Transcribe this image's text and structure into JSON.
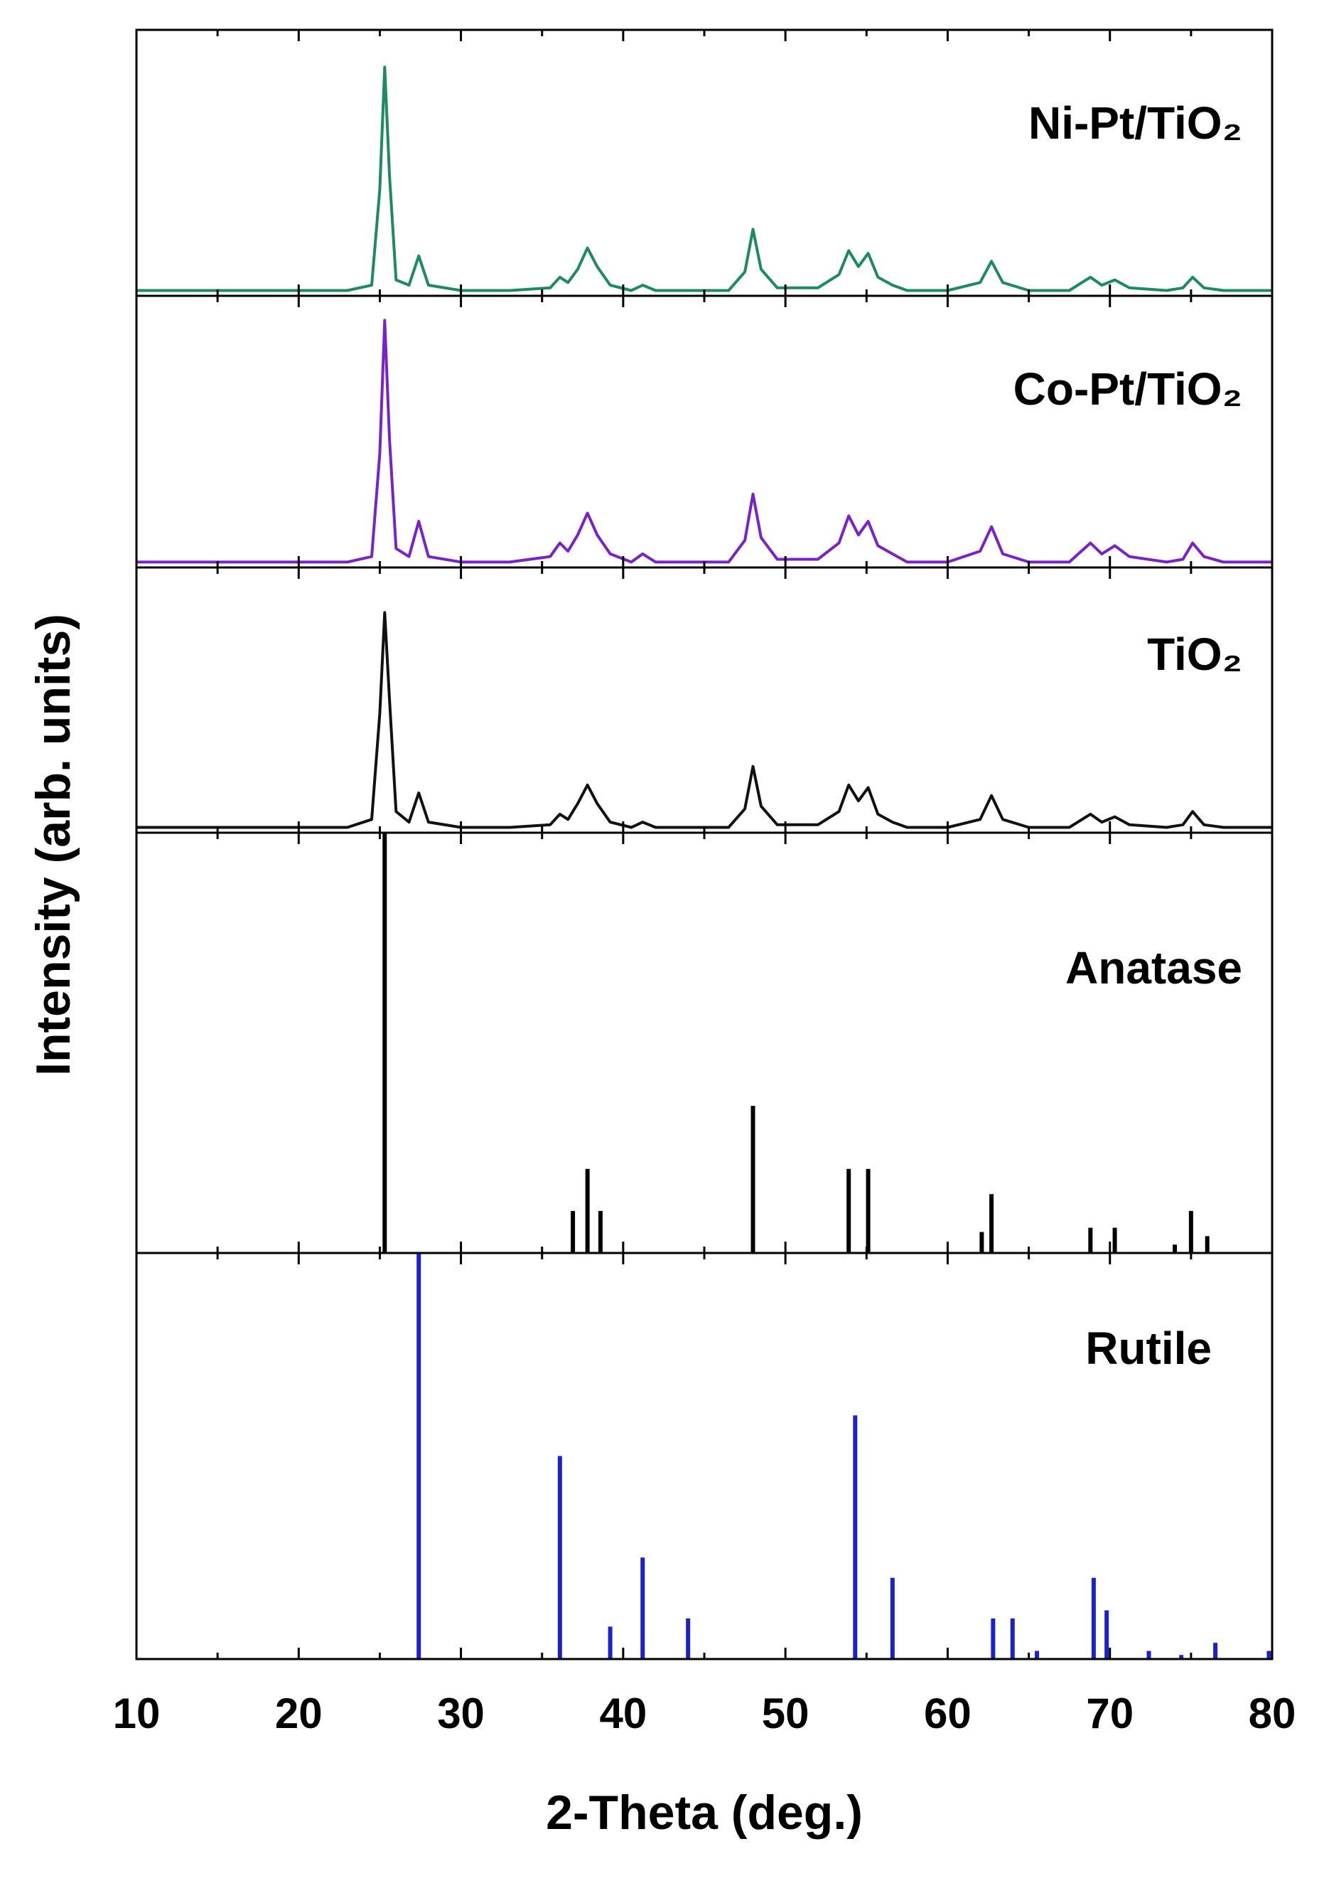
{
  "chart_data": {
    "type": "stacked",
    "xlabel": "2-Theta (deg.)",
    "ylabel": "Intensity (arb. units)",
    "xlim": [
      10,
      80
    ],
    "xticks": [
      10,
      20,
      30,
      40,
      50,
      60,
      70,
      80
    ],
    "xminorticks": [
      15,
      25,
      35,
      45,
      55,
      65,
      75
    ],
    "x": [
      10,
      15,
      20,
      23,
      24.5,
      25.0,
      25.3,
      25.6,
      26.0,
      26.8,
      27.4,
      28.0,
      30,
      33,
      35.5,
      36.1,
      36.6,
      37.2,
      37.8,
      38.4,
      39.2,
      40.5,
      41.2,
      42,
      44,
      46.5,
      47.5,
      48.0,
      48.5,
      49.5,
      52,
      53.3,
      53.9,
      54.5,
      55.1,
      55.7,
      56.6,
      57.5,
      60,
      62.0,
      62.7,
      63.4,
      65,
      67.5,
      68.8,
      69.5,
      70.3,
      71.2,
      73.5,
      74.5,
      75.1,
      75.8,
      77,
      80
    ],
    "panels": [
      {
        "type": "line",
        "label": "Ni-Pt/TiO₂",
        "color": "#1e8a60",
        "ylim": [
          0,
          100
        ],
        "values": [
          2,
          2,
          2,
          2,
          4,
          40,
          86,
          45,
          6,
          4,
          15,
          4,
          2,
          2,
          3,
          7,
          5,
          10,
          18,
          11,
          4,
          2,
          4,
          2,
          2,
          2,
          9,
          25,
          10,
          3,
          3,
          8,
          17,
          11,
          16,
          7,
          4,
          2,
          2,
          5,
          13,
          5,
          2,
          2,
          7,
          4,
          6,
          3,
          2,
          3,
          7,
          3,
          2,
          2
        ]
      },
      {
        "type": "line",
        "label": "Co-Pt/TiO₂",
        "color": "#7a22c8",
        "ylim": [
          0,
          100
        ],
        "values": [
          2,
          2,
          2,
          2,
          4,
          42,
          91,
          47,
          7,
          4,
          17,
          4,
          2,
          2,
          4,
          9,
          6,
          12,
          20,
          12,
          5,
          2,
          5,
          2,
          2,
          2,
          10,
          27,
          11,
          3,
          3,
          9,
          19,
          12,
          17,
          8,
          5,
          2,
          2,
          6,
          15,
          5,
          2,
          2,
          9,
          5,
          8,
          4,
          2,
          3,
          9,
          4,
          2,
          2
        ]
      },
      {
        "type": "line",
        "label": "TiO₂",
        "color": "#111111",
        "ylim": [
          0,
          100
        ],
        "values": [
          2,
          2,
          2,
          2,
          5,
          45,
          83,
          50,
          8,
          4,
          15,
          4,
          2,
          2,
          3,
          7,
          5,
          11,
          18,
          11,
          4,
          2,
          4,
          2,
          2,
          2,
          9,
          25,
          10,
          3,
          3,
          8,
          18,
          12,
          17,
          7,
          4,
          2,
          2,
          5,
          14,
          5,
          2,
          2,
          7,
          4,
          6,
          3,
          2,
          3,
          8,
          3,
          2,
          2
        ]
      },
      {
        "type": "stem",
        "label": "Anatase",
        "color": "#000000",
        "ylim": [
          0,
          100
        ],
        "x": [
          25.3,
          36.9,
          37.8,
          38.6,
          48.0,
          53.9,
          55.1,
          62.1,
          62.7,
          68.8,
          70.3,
          74.0,
          75.0,
          76.0
        ],
        "values": [
          100,
          10,
          20,
          10,
          35,
          20,
          20,
          5,
          14,
          6,
          6,
          2,
          10,
          4
        ]
      },
      {
        "type": "stem",
        "label": "Rutile",
        "color": "#1a22c8",
        "ylim": [
          0,
          100
        ],
        "x": [
          27.4,
          36.1,
          39.2,
          41.2,
          44.0,
          54.3,
          56.6,
          62.8,
          64.0,
          65.5,
          69.0,
          69.8,
          72.4,
          74.4,
          76.5,
          79.8
        ],
        "values": [
          100,
          50,
          8,
          25,
          10,
          60,
          20,
          10,
          10,
          2,
          20,
          12,
          2,
          1,
          4,
          2
        ]
      }
    ]
  }
}
